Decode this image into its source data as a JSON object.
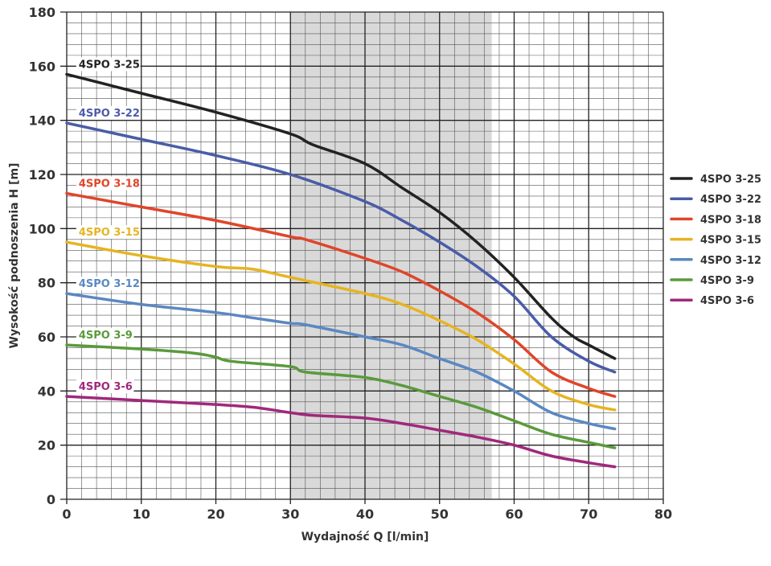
{
  "chart_data": {
    "type": "line",
    "xlabel": "Wydajność Q [l/min]",
    "ylabel": "Wysokość podnoszenia H [m]",
    "xlim": [
      0,
      80
    ],
    "ylim": [
      0,
      180
    ],
    "xticks": [
      0,
      10,
      20,
      30,
      40,
      50,
      60,
      70,
      80
    ],
    "yticks": [
      0,
      20,
      40,
      60,
      80,
      100,
      120,
      140,
      160,
      180
    ],
    "grid": true,
    "highlight_range_x": [
      30,
      57
    ],
    "legend_position": "right",
    "series": [
      {
        "name": "4SPO 3-25",
        "color": "#222222",
        "x": [
          0,
          10,
          20,
          30,
          33,
          40,
          45,
          50,
          55,
          60,
          65,
          68,
          70,
          73.5
        ],
        "y": [
          157,
          150,
          143,
          135,
          131,
          124,
          115,
          106,
          95,
          82,
          67,
          60,
          57,
          52
        ]
      },
      {
        "name": "4SPO 3-22",
        "color": "#4a5ca8",
        "x": [
          0,
          10,
          20,
          30,
          40,
          45,
          50,
          55,
          60,
          65,
          70,
          73.5
        ],
        "y": [
          139,
          133,
          127,
          120,
          110,
          103,
          95,
          86,
          75,
          60,
          51,
          47
        ]
      },
      {
        "name": "4SPO 3-18",
        "color": "#e0452a",
        "x": [
          0,
          10,
          20,
          30,
          32,
          40,
          45,
          50,
          55,
          60,
          65,
          70,
          73.5
        ],
        "y": [
          113,
          108,
          103,
          97,
          96,
          89,
          84,
          77,
          69,
          59,
          47,
          41,
          38
        ]
      },
      {
        "name": "4SPO 3-15",
        "color": "#e6b422",
        "x": [
          0,
          10,
          20,
          25,
          30,
          40,
          45,
          50,
          55,
          60,
          65,
          70,
          73.5
        ],
        "y": [
          95,
          90,
          86,
          85,
          82,
          76,
          72,
          66,
          59,
          50,
          40,
          35,
          33
        ]
      },
      {
        "name": "4SPO 3-12",
        "color": "#5a88c2",
        "x": [
          0,
          10,
          20,
          25,
          30,
          32,
          40,
          45,
          50,
          55,
          60,
          65,
          70,
          73.5
        ],
        "y": [
          76,
          72,
          69,
          67,
          65,
          64.5,
          60,
          57,
          52,
          47,
          40,
          32,
          28,
          26
        ]
      },
      {
        "name": "4SPO 3-9",
        "color": "#5a9a3c",
        "x": [
          0,
          10,
          17,
          20,
          22,
          30,
          32,
          40,
          45,
          50,
          55,
          60,
          65,
          70,
          73.5
        ],
        "y": [
          57,
          55.5,
          54,
          52.5,
          51,
          49,
          47,
          45,
          42,
          38,
          34,
          29,
          24,
          21,
          19
        ]
      },
      {
        "name": "4SPO 3-6",
        "color": "#a0287c",
        "x": [
          0,
          10,
          20,
          25,
          30,
          33,
          40,
          45,
          50,
          55,
          60,
          65,
          70,
          73.5
        ],
        "y": [
          38,
          36.5,
          35,
          34,
          32,
          31,
          30,
          28,
          25.5,
          23,
          20,
          16,
          13.5,
          12
        ]
      }
    ]
  }
}
